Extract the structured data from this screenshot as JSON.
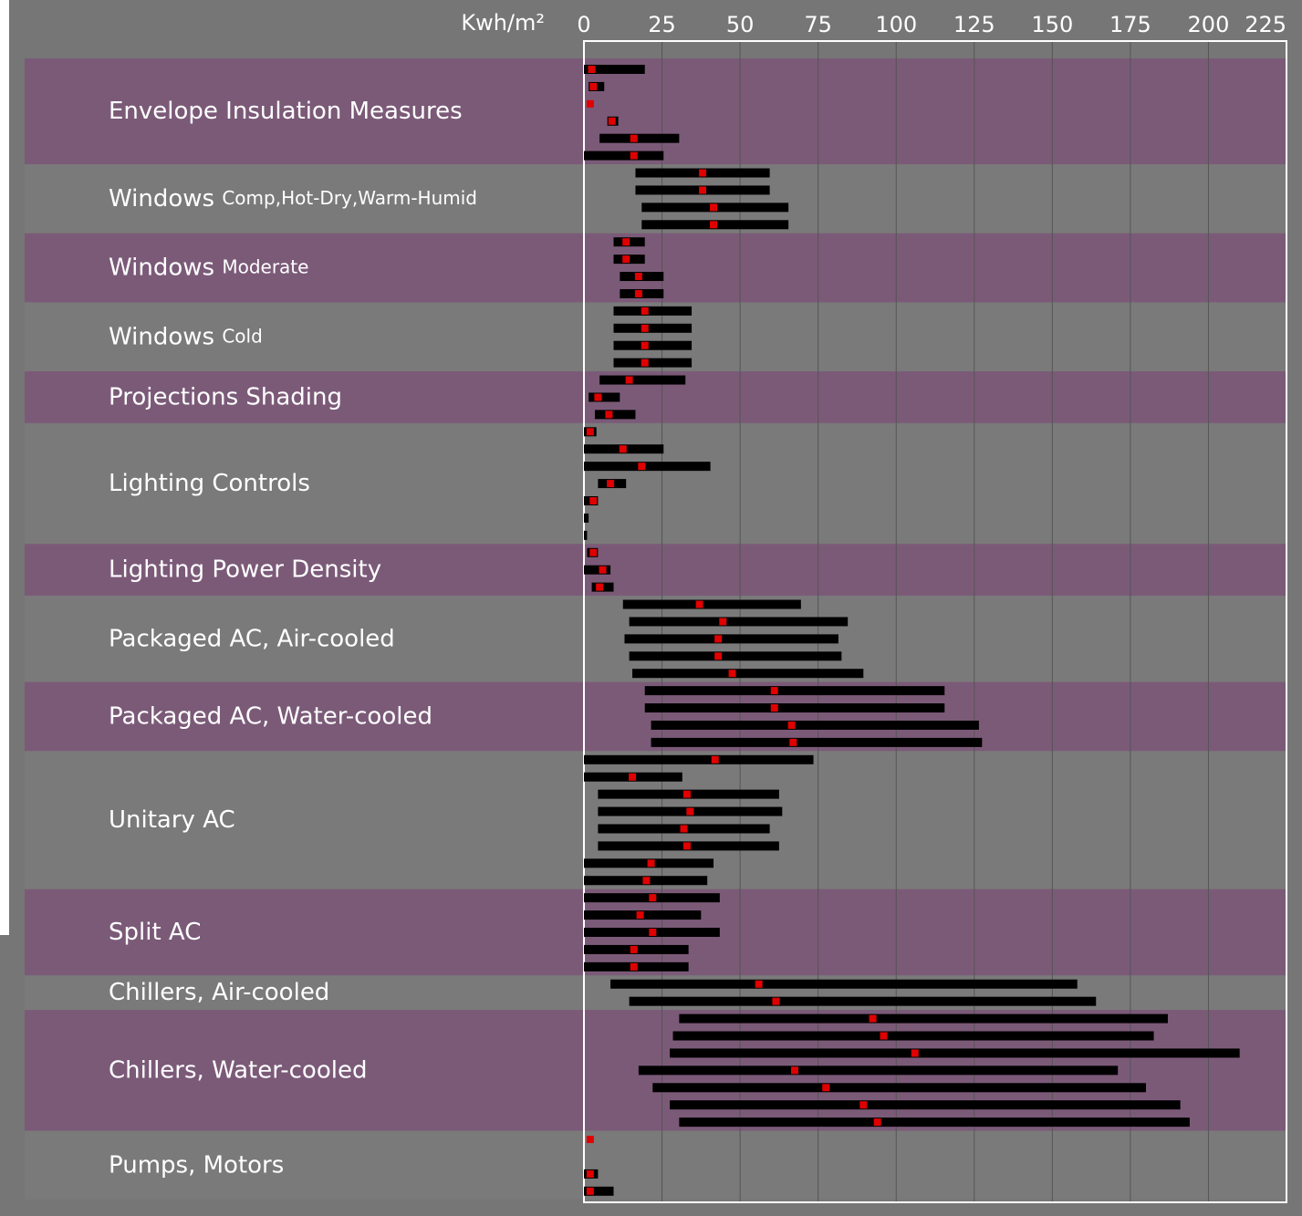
{
  "chart_data": {
    "type": "range_bar",
    "axis_label": "Kwh/m²",
    "xlim": [
      0,
      225
    ],
    "xticks": [
      0,
      25,
      50,
      75,
      100,
      125,
      150,
      175,
      200,
      225
    ],
    "grid": true,
    "bar_color": "#000000",
    "median_color": "#e00000",
    "band_colors": [
      "#7b5a78",
      "#7a7a7a"
    ],
    "groups": [
      {
        "label": "Envelope Insulation Measures",
        "bars": [
          {
            "low": 0,
            "high": 19.5,
            "median": 2.5
          },
          {
            "low": 1.5,
            "high": 6.5,
            "median": 3
          },
          {
            "low": null,
            "high": null,
            "median": 2
          },
          {
            "low": 7.5,
            "high": 11,
            "median": 9
          },
          {
            "low": 5,
            "high": 30.5,
            "median": 16
          },
          {
            "low": 0,
            "high": 25.5,
            "median": 16
          }
        ]
      },
      {
        "label": "Windows",
        "sublabel": "Comp,Hot-Dry,Warm-Humid",
        "bars": [
          {
            "low": 16.5,
            "high": 59.5,
            "median": 38
          },
          {
            "low": 16.5,
            "high": 59.5,
            "median": 38
          },
          {
            "low": 18.5,
            "high": 65.5,
            "median": 41.5
          },
          {
            "low": 18.5,
            "high": 65.5,
            "median": 41.5
          }
        ]
      },
      {
        "label": "Windows",
        "sublabel": "Moderate",
        "bars": [
          {
            "low": 9.5,
            "high": 19.5,
            "median": 13.5
          },
          {
            "low": 9.5,
            "high": 19.5,
            "median": 13.5
          },
          {
            "low": 11.5,
            "high": 25.5,
            "median": 17.5
          },
          {
            "low": 11.5,
            "high": 25.5,
            "median": 17.5
          }
        ]
      },
      {
        "label": "Windows",
        "sublabel": "Cold",
        "bars": [
          {
            "low": 9.5,
            "high": 34.5,
            "median": 19.5
          },
          {
            "low": 9.5,
            "high": 34.5,
            "median": 19.5
          },
          {
            "low": 9.5,
            "high": 34.5,
            "median": 19.5
          },
          {
            "low": 9.5,
            "high": 34.5,
            "median": 19.5
          }
        ]
      },
      {
        "label": "Projections Shading",
        "bars": [
          {
            "low": 5,
            "high": 32.5,
            "median": 14.5
          },
          {
            "low": 1.5,
            "high": 11.5,
            "median": 4.5
          },
          {
            "low": 3.5,
            "high": 16.5,
            "median": 8
          }
        ]
      },
      {
        "label": "Lighting Controls",
        "bars": [
          {
            "low": 0,
            "high": 4,
            "median": 2
          },
          {
            "low": 0,
            "high": 25.5,
            "median": 12.5
          },
          {
            "low": 0,
            "high": 40.5,
            "median": 18.5
          },
          {
            "low": 4.5,
            "high": 13.5,
            "median": 8.5
          },
          {
            "low": 0,
            "high": 4.5,
            "median": 3
          },
          {
            "low": 0,
            "high": 1.5,
            "median": null
          },
          {
            "low": 0,
            "high": 1,
            "median": null
          }
        ]
      },
      {
        "label": "Lighting Power Density",
        "bars": [
          {
            "low": 1,
            "high": 4.5,
            "median": 3
          },
          {
            "low": 0,
            "high": 8.5,
            "median": 6
          },
          {
            "low": 2.5,
            "high": 9.5,
            "median": 5
          }
        ]
      },
      {
        "label": "Packaged AC, Air-cooled",
        "bars": [
          {
            "low": 12.5,
            "high": 69.5,
            "median": 37
          },
          {
            "low": 14.5,
            "high": 84.5,
            "median": 44.5
          },
          {
            "low": 13,
            "high": 81.5,
            "median": 43
          },
          {
            "low": 14.5,
            "high": 82.5,
            "median": 43
          },
          {
            "low": 15.5,
            "high": 89.5,
            "median": 47.5
          }
        ]
      },
      {
        "label": "Packaged AC, Water-cooled",
        "bars": [
          {
            "low": 19.5,
            "high": 115.5,
            "median": 61
          },
          {
            "low": 19.5,
            "high": 115.5,
            "median": 61
          },
          {
            "low": 21.5,
            "high": 126.5,
            "median": 66.5
          },
          {
            "low": 21.5,
            "high": 127.5,
            "median": 67
          }
        ]
      },
      {
        "label": "Unitary AC",
        "bars": [
          {
            "low": 0,
            "high": 73.5,
            "median": 42
          },
          {
            "low": 0,
            "high": 31.5,
            "median": 15.5
          },
          {
            "low": 4.5,
            "high": 62.5,
            "median": 33
          },
          {
            "low": 4.5,
            "high": 63.5,
            "median": 34
          },
          {
            "low": 4.5,
            "high": 59.5,
            "median": 32
          },
          {
            "low": 4.5,
            "high": 62.5,
            "median": 33
          },
          {
            "low": 0,
            "high": 41.5,
            "median": 21.5
          },
          {
            "low": 0,
            "high": 39.5,
            "median": 20
          }
        ]
      },
      {
        "label": "Split AC",
        "bars": [
          {
            "low": 0,
            "high": 43.5,
            "median": 22
          },
          {
            "low": 0,
            "high": 37.5,
            "median": 18
          },
          {
            "low": 0,
            "high": 43.5,
            "median": 22
          },
          {
            "low": 0,
            "high": 33.5,
            "median": 16
          },
          {
            "low": 0,
            "high": 33.5,
            "median": 16
          }
        ]
      },
      {
        "label": "Chillers, Air-cooled",
        "bars": [
          {
            "low": 8.5,
            "high": 158,
            "median": 56
          },
          {
            "low": 14.5,
            "high": 164,
            "median": 61.5
          }
        ]
      },
      {
        "label": "Chillers, Water-cooled",
        "bars": [
          {
            "low": 30.5,
            "high": 187,
            "median": 92.5
          },
          {
            "low": 28.5,
            "high": 182.5,
            "median": 96
          },
          {
            "low": 27.5,
            "high": 210,
            "median": 106
          },
          {
            "low": 17.5,
            "high": 171,
            "median": 67.5
          },
          {
            "low": 22,
            "high": 180,
            "median": 77.5
          },
          {
            "low": 27.5,
            "high": 191,
            "median": 89.5
          },
          {
            "low": 30.5,
            "high": 194,
            "median": 94
          }
        ]
      },
      {
        "label": "Pumps, Motors",
        "bars": [
          {
            "low": null,
            "high": null,
            "median": 2
          },
          {
            "low": null,
            "high": null,
            "median": null
          },
          {
            "low": 0,
            "high": 4.5,
            "median": 2
          },
          {
            "low": 0,
            "high": 9.5,
            "median": 2
          }
        ]
      }
    ]
  }
}
